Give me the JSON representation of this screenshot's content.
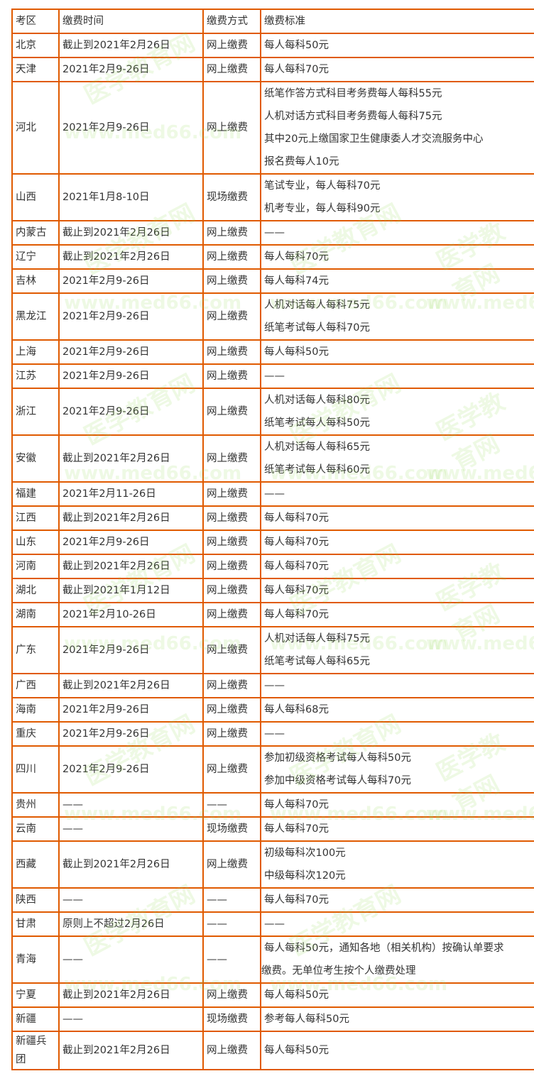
{
  "watermark": {
    "url": "www.med66.com",
    "name": "医学教育网"
  },
  "table": {
    "headers": [
      "考区",
      "缴费时间",
      "缴费方式",
      "缴费标准"
    ],
    "rows": [
      {
        "region": "北京",
        "time": "截止到2021年2月26日",
        "method": "网上缴费",
        "standard": [
          "每人每科50元"
        ]
      },
      {
        "region": "天津",
        "time": "2021年2月9-26日",
        "method": "网上缴费",
        "standard": [
          "每人每科70元"
        ]
      },
      {
        "region": "河北",
        "time": "2021年2月9-26日",
        "method": "网上缴费",
        "standard": [
          "纸笔作答方式科目考务费每人每科55元",
          "人机对话方式科目考务费每人每科75元",
          "其中20元上缴国家卫生健康委人才交流服务中心",
          "报名费每人10元"
        ]
      },
      {
        "region": "山西",
        "time": "2021年1月8-10日",
        "method": "现场缴费",
        "standard": [
          "笔试专业，每人每科70元",
          "机考专业，每人每科90元"
        ]
      },
      {
        "region": "内蒙古",
        "time": "截止到2021年2月26日",
        "method": "网上缴费",
        "standard": [
          "——"
        ]
      },
      {
        "region": "辽宁",
        "time": "截止到2021年2月26日",
        "method": "网上缴费",
        "standard": [
          "每人每科70元"
        ]
      },
      {
        "region": "吉林",
        "time": "2021年2月9-26日",
        "method": "网上缴费",
        "standard": [
          "每人每科74元"
        ]
      },
      {
        "region": "黑龙江",
        "time": "2021年2月9-26日",
        "method": "网上缴费",
        "standard": [
          "人机对话每人每科75元",
          "纸笔考试每人每科70元"
        ]
      },
      {
        "region": "上海",
        "time": "2021年2月9-26日",
        "method": "网上缴费",
        "standard": [
          "每人每科50元"
        ]
      },
      {
        "region": "江苏",
        "time": "2021年2月9-26日",
        "method": "网上缴费",
        "standard": [
          "——"
        ]
      },
      {
        "region": "浙江",
        "time": "2021年2月9-26日",
        "method": "网上缴费",
        "standard": [
          "人机对话每人每科80元",
          "纸笔考试每人每科50元"
        ]
      },
      {
        "region": "安徽",
        "time": "截止到2021年2月26日",
        "method": "网上缴费",
        "standard": [
          "人机对话每人每科65元",
          "纸笔考试每人每科60元"
        ]
      },
      {
        "region": "福建",
        "time": "2021年2月11-26日",
        "method": "网上缴费",
        "standard": [
          "——"
        ]
      },
      {
        "region": "江西",
        "time": "截止到2021年2月26日",
        "method": "网上缴费",
        "standard": [
          "每人每科70元"
        ]
      },
      {
        "region": "山东",
        "time": "2021年2月9-26日",
        "method": "网上缴费",
        "standard": [
          "每人每科70元"
        ]
      },
      {
        "region": "河南",
        "time": "截止到2021年2月26日",
        "method": "网上缴费",
        "standard": [
          "每人每科70元"
        ]
      },
      {
        "region": "湖北",
        "time": "截止到2021年1月12日",
        "method": "网上缴费",
        "standard": [
          "每人每科70元"
        ]
      },
      {
        "region": "湖南",
        "time": "2021年2月10-26日",
        "method": "网上缴费",
        "standard": [
          "每人每科70元"
        ]
      },
      {
        "region": "广东",
        "time": "2021年2月9-26日",
        "method": "网上缴费",
        "standard": [
          "人机对话每人每科75元",
          "纸笔考试每人每科65元"
        ]
      },
      {
        "region": "广西",
        "time": "截止到2021年2月26日",
        "method": "网上缴费",
        "standard": [
          "——"
        ]
      },
      {
        "region": "海南",
        "time": "2021年2月9-26日",
        "method": "网上缴费",
        "standard": [
          "每人每科68元"
        ]
      },
      {
        "region": "重庆",
        "time": "2021年2月9-26日",
        "method": "网上缴费",
        "standard": [
          "——"
        ]
      },
      {
        "region": "四川",
        "time": "2021年2月9-26日",
        "method": "网上缴费",
        "standard": [
          "参加初级资格考试每人每科50元",
          "参加中级资格考试每人每科70元"
        ]
      },
      {
        "region": "贵州",
        "time": "——",
        "method": "——",
        "standard": [
          "每人每科70元"
        ]
      },
      {
        "region": "云南",
        "time": "——",
        "method": "现场缴费",
        "standard": [
          "每人每科70元"
        ]
      },
      {
        "region": "西藏",
        "time": "截止到2021年2月26日",
        "method": "网上缴费",
        "standard": [
          "初级每科次100元",
          "中级每科次120元"
        ]
      },
      {
        "region": "陕西",
        "time": "——",
        "method": "——",
        "standard": [
          "每人每科70元"
        ]
      },
      {
        "region": "甘肃",
        "time": "原则上不超过2月26日",
        "method": "——",
        "standard": [
          "——"
        ]
      },
      {
        "region": "青海",
        "time": "——",
        "method": "——",
        "standard": [
          "每人每科50元，通知各地（相关机构）按确认单要求",
          "缴费。无单位考生按个人缴费处理"
        ]
      },
      {
        "region": "宁夏",
        "time": "截止到2021年2月26日",
        "method": "网上缴费",
        "standard": [
          "每人每科50元"
        ]
      },
      {
        "region": "新疆",
        "time": "——",
        "method": "现场缴费",
        "standard": [
          "参考每人每科50元"
        ]
      },
      {
        "region": "新疆兵团",
        "time": "截止到2021年2月26日",
        "method": "网上缴费",
        "standard": [
          "每人每科50元"
        ]
      }
    ]
  }
}
